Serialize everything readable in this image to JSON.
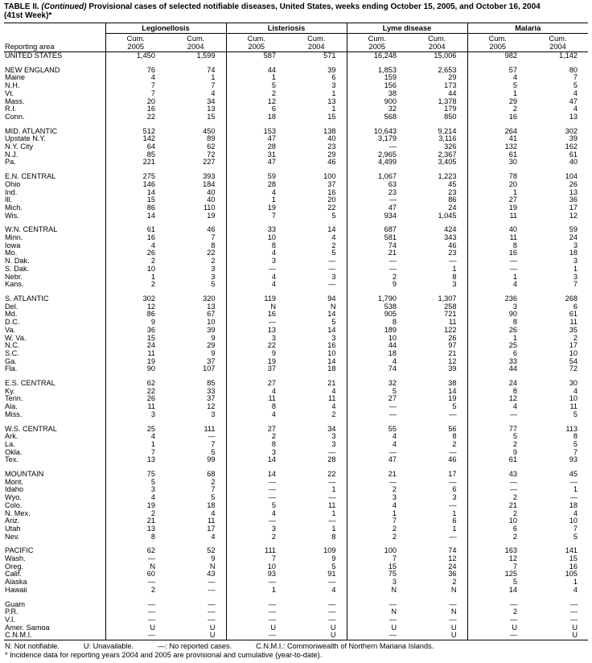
{
  "title": {
    "prefix": "TABLE II.",
    "continued": "(Continued)",
    "rest": "Provisional cases of selected notifiable diseases, United States, weeks ending October 15, 2005, and October 16, 2004",
    "line2": "(41st Week)*"
  },
  "table": {
    "reporting_area_label": "Reporting area",
    "groups": [
      "Legionellosis",
      "Listeriosis",
      "Lyme disease",
      "Malaria"
    ],
    "cum_label": "Cum.",
    "years": [
      "2005",
      "2004"
    ],
    "sections": [
      {
        "name": "united-states",
        "rows": [
          [
            "UNITED STATES",
            "1,450",
            "1,599",
            "587",
            "571",
            "16,248",
            "15,006",
            "982",
            "1,142"
          ]
        ]
      },
      {
        "name": "new-england",
        "rows": [
          [
            "NEW ENGLAND",
            "76",
            "74",
            "44",
            "39",
            "1,853",
            "2,653",
            "57",
            "80"
          ],
          [
            "Maine",
            "4",
            "1",
            "1",
            "6",
            "159",
            "29",
            "4",
            "7"
          ],
          [
            "N.H.",
            "7",
            "7",
            "5",
            "3",
            "156",
            "173",
            "5",
            "5"
          ],
          [
            "Vt.",
            "7",
            "4",
            "2",
            "1",
            "38",
            "44",
            "1",
            "4"
          ],
          [
            "Mass.",
            "20",
            "34",
            "12",
            "13",
            "900",
            "1,378",
            "29",
            "47"
          ],
          [
            "R.I.",
            "16",
            "13",
            "6",
            "1",
            "32",
            "179",
            "2",
            "4"
          ],
          [
            "Conn.",
            "22",
            "15",
            "18",
            "15",
            "568",
            "850",
            "16",
            "13"
          ]
        ]
      },
      {
        "name": "mid-atlantic",
        "rows": [
          [
            "MID. ATLANTIC",
            "512",
            "450",
            "153",
            "138",
            "10,643",
            "9,214",
            "264",
            "302"
          ],
          [
            "Upstate N.Y.",
            "142",
            "89",
            "47",
            "40",
            "3,179",
            "3,116",
            "41",
            "39"
          ],
          [
            "N.Y. City",
            "64",
            "62",
            "28",
            "23",
            "—",
            "326",
            "132",
            "162"
          ],
          [
            "N.J.",
            "85",
            "72",
            "31",
            "29",
            "2,965",
            "2,367",
            "61",
            "61"
          ],
          [
            "Pa.",
            "221",
            "227",
            "47",
            "46",
            "4,499",
            "3,405",
            "30",
            "40"
          ]
        ]
      },
      {
        "name": "en-central",
        "rows": [
          [
            "E.N. CENTRAL",
            "275",
            "393",
            "59",
            "100",
            "1,067",
            "1,223",
            "78",
            "104"
          ],
          [
            "Ohio",
            "146",
            "184",
            "28",
            "37",
            "63",
            "45",
            "20",
            "26"
          ],
          [
            "Ind.",
            "14",
            "40",
            "4",
            "16",
            "23",
            "23",
            "1",
            "13"
          ],
          [
            "Ill.",
            "15",
            "40",
            "1",
            "20",
            "—",
            "86",
            "27",
            "36"
          ],
          [
            "Mich.",
            "86",
            "110",
            "19",
            "22",
            "47",
            "24",
            "19",
            "17"
          ],
          [
            "Wis.",
            "14",
            "19",
            "7",
            "5",
            "934",
            "1,045",
            "11",
            "12"
          ]
        ]
      },
      {
        "name": "wn-central",
        "rows": [
          [
            "W.N. CENTRAL",
            "61",
            "46",
            "33",
            "14",
            "687",
            "424",
            "40",
            "59"
          ],
          [
            "Minn.",
            "16",
            "7",
            "10",
            "4",
            "581",
            "343",
            "11",
            "24"
          ],
          [
            "Iowa",
            "4",
            "8",
            "8",
            "2",
            "74",
            "46",
            "8",
            "3"
          ],
          [
            "Mo.",
            "26",
            "22",
            "4",
            "5",
            "21",
            "23",
            "16",
            "18"
          ],
          [
            "N. Dak.",
            "2",
            "2",
            "3",
            "—",
            "—",
            "—",
            "—",
            "3"
          ],
          [
            "S. Dak.",
            "10",
            "3",
            "—",
            "—",
            "—",
            "1",
            "—",
            "1"
          ],
          [
            "Nebr.",
            "1",
            "3",
            "4",
            "3",
            "2",
            "8",
            "1",
            "3"
          ],
          [
            "Kans.",
            "2",
            "5",
            "4",
            "—",
            "9",
            "3",
            "4",
            "7"
          ]
        ]
      },
      {
        "name": "s-atlantic",
        "rows": [
          [
            "S. ATLANTIC",
            "302",
            "320",
            "119",
            "94",
            "1,790",
            "1,307",
            "236",
            "268"
          ],
          [
            "Del.",
            "12",
            "13",
            "N",
            "N",
            "538",
            "258",
            "3",
            "6"
          ],
          [
            "Md.",
            "86",
            "67",
            "16",
            "14",
            "905",
            "721",
            "90",
            "61"
          ],
          [
            "D.C.",
            "9",
            "10",
            "—",
            "5",
            "8",
            "11",
            "8",
            "11"
          ],
          [
            "Va.",
            "36",
            "39",
            "13",
            "14",
            "189",
            "122",
            "26",
            "35"
          ],
          [
            "W. Va.",
            "15",
            "9",
            "3",
            "3",
            "10",
            "26",
            "1",
            "2"
          ],
          [
            "N.C.",
            "24",
            "29",
            "22",
            "16",
            "44",
            "97",
            "25",
            "17"
          ],
          [
            "S.C.",
            "11",
            "9",
            "9",
            "10",
            "18",
            "21",
            "6",
            "10"
          ],
          [
            "Ga.",
            "19",
            "37",
            "19",
            "14",
            "4",
            "12",
            "33",
            "54"
          ],
          [
            "Fla.",
            "90",
            "107",
            "37",
            "18",
            "74",
            "39",
            "44",
            "72"
          ]
        ]
      },
      {
        "name": "es-central",
        "rows": [
          [
            "E.S. CENTRAL",
            "62",
            "85",
            "27",
            "21",
            "32",
            "38",
            "24",
            "30"
          ],
          [
            "Ky.",
            "22",
            "33",
            "4",
            "4",
            "5",
            "14",
            "8",
            "4"
          ],
          [
            "Tenn.",
            "26",
            "37",
            "11",
            "11",
            "27",
            "19",
            "12",
            "10"
          ],
          [
            "Ala.",
            "11",
            "12",
            "8",
            "4",
            "—",
            "5",
            "4",
            "11"
          ],
          [
            "Miss.",
            "3",
            "3",
            "4",
            "2",
            "—",
            "—",
            "—",
            "5"
          ]
        ]
      },
      {
        "name": "ws-central",
        "rows": [
          [
            "W.S. CENTRAL",
            "25",
            "111",
            "27",
            "34",
            "55",
            "56",
            "77",
            "113"
          ],
          [
            "Ark.",
            "4",
            "—",
            "2",
            "3",
            "4",
            "8",
            "5",
            "8"
          ],
          [
            "La.",
            "1",
            "7",
            "8",
            "3",
            "4",
            "2",
            "2",
            "5"
          ],
          [
            "Okla.",
            "7",
            "5",
            "3",
            "—",
            "—",
            "—",
            "9",
            "7"
          ],
          [
            "Tex.",
            "13",
            "99",
            "14",
            "28",
            "47",
            "46",
            "61",
            "93"
          ]
        ]
      },
      {
        "name": "mountain",
        "rows": [
          [
            "MOUNTAIN",
            "75",
            "68",
            "14",
            "22",
            "21",
            "17",
            "43",
            "45"
          ],
          [
            "Mont.",
            "5",
            "2",
            "—",
            "—",
            "—",
            "—",
            "—",
            "—"
          ],
          [
            "Idaho",
            "3",
            "7",
            "—",
            "1",
            "2",
            "6",
            "—",
            "1"
          ],
          [
            "Wyo.",
            "4",
            "5",
            "—",
            "—",
            "3",
            "3",
            "2",
            "—"
          ],
          [
            "Colo.",
            "19",
            "18",
            "5",
            "11",
            "4",
            "—",
            "21",
            "18"
          ],
          [
            "N. Mex.",
            "2",
            "4",
            "4",
            "1",
            "1",
            "1",
            "2",
            "4"
          ],
          [
            "Ariz.",
            "21",
            "11",
            "—",
            "—",
            "7",
            "6",
            "10",
            "10"
          ],
          [
            "Utah",
            "13",
            "17",
            "3",
            "1",
            "2",
            "1",
            "6",
            "7"
          ],
          [
            "Nev.",
            "8",
            "4",
            "2",
            "8",
            "2",
            "—",
            "2",
            "5"
          ]
        ]
      },
      {
        "name": "pacific",
        "rows": [
          [
            "PACIFIC",
            "62",
            "52",
            "111",
            "109",
            "100",
            "74",
            "163",
            "141"
          ],
          [
            "Wash.",
            "—",
            "9",
            "7",
            "9",
            "7",
            "12",
            "12",
            "15"
          ],
          [
            "Oreg.",
            "N",
            "N",
            "10",
            "5",
            "15",
            "24",
            "7",
            "16"
          ],
          [
            "Calif.",
            "60",
            "43",
            "93",
            "91",
            "75",
            "36",
            "125",
            "105"
          ],
          [
            "Alaska",
            "—",
            "—",
            "—",
            "—",
            "3",
            "2",
            "5",
            "1"
          ],
          [
            "Hawaii",
            "2",
            "—",
            "1",
            "4",
            "N",
            "N",
            "14",
            "4"
          ]
        ]
      },
      {
        "name": "territories",
        "rows": [
          [
            "Guam",
            "—",
            "—",
            "—",
            "—",
            "—",
            "—",
            "—",
            "—"
          ],
          [
            "P.R.",
            "—",
            "—",
            "—",
            "—",
            "N",
            "N",
            "2",
            "—"
          ],
          [
            "V.I.",
            "—",
            "—",
            "—",
            "—",
            "—",
            "—",
            "—",
            "—"
          ],
          [
            "Amer. Samoa",
            "U",
            "U",
            "U",
            "U",
            "U",
            "U",
            "U",
            "U"
          ],
          [
            "C.N.M.I.",
            "—",
            "U",
            "—",
            "U",
            "—",
            "U",
            "—",
            "U"
          ]
        ]
      }
    ]
  },
  "footnotes": {
    "legend": [
      "N: Not notifiable.",
      "U: Unavailable.",
      "—: No reported cases.",
      "C.N.M.I.: Commonwealth of Northern Mariana Islands."
    ],
    "note": "* Incidence data for reporting years 2004 and 2005 are provisional and cumulative (year-to-date)."
  }
}
